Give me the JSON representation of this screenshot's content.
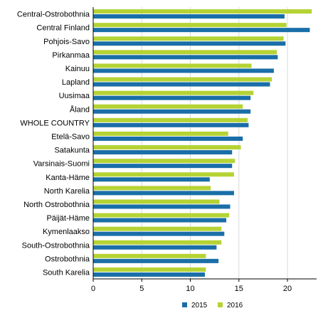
{
  "chart_data": {
    "type": "bar",
    "orientation": "horizontal",
    "categories": [
      "Central-Ostrobothnia",
      "Central Finland",
      "Pohjois-Savo",
      "Pirkanmaa",
      "Kainuu",
      "Lapland",
      "Uusimaa",
      "Åland",
      "WHOLE COUNTRY",
      "Etelä-Savo",
      "Satakunta",
      "Varsinais-Suomi",
      "Kanta-Häme",
      "North Karelia",
      "North Ostrobothnia",
      "Päijät-Häme",
      "Kymenlaakso",
      "South-Ostrobothnia",
      "Ostrobothnia",
      "South Karelia"
    ],
    "series": [
      {
        "name": "2016",
        "color": "#b5d334",
        "values": [
          22.5,
          19.9,
          19.6,
          18.9,
          16.3,
          18.4,
          16.5,
          15.4,
          15.9,
          13.9,
          15.2,
          14.6,
          14.5,
          12.1,
          13.0,
          14.0,
          13.2,
          13.2,
          11.6,
          11.6
        ]
      },
      {
        "name": "2015",
        "color": "#1a6ea8",
        "values": [
          19.7,
          22.3,
          19.8,
          19.0,
          18.6,
          18.2,
          16.2,
          16.2,
          16.0,
          15.4,
          14.3,
          14.3,
          12.0,
          14.5,
          14.1,
          13.7,
          13.5,
          12.7,
          12.9,
          11.5
        ]
      }
    ],
    "legend": [
      "2015",
      "2016"
    ],
    "legend_position": "bottom",
    "xlim": [
      0,
      23
    ],
    "xticks": [
      0,
      5,
      10,
      15,
      20
    ],
    "grid": "vertical"
  }
}
